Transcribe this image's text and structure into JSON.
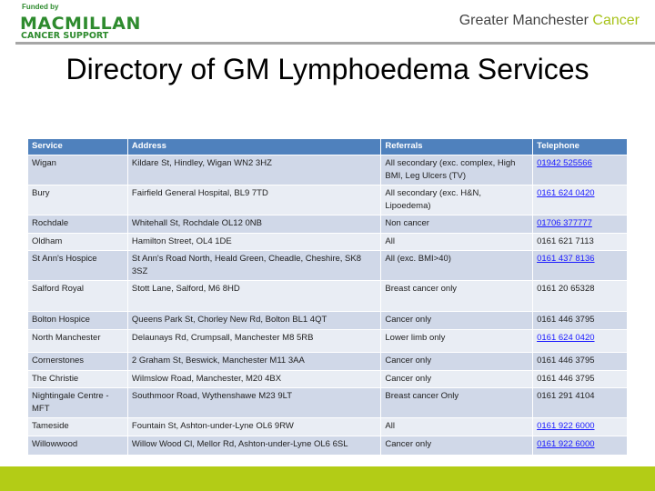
{
  "header": {
    "funded_by": "Funded by",
    "logo_line1": "MACMILLAN",
    "logo_line2": "CANCER SUPPORT",
    "brand_prefix": "Greater Manchester ",
    "brand_accent": "Cancer"
  },
  "title": "Directory of GM Lymphoedema Services",
  "colors": {
    "header_row": "#4f81bd",
    "row_dark": "#d0d8e8",
    "row_light": "#e9edf4",
    "brand_green": "#b3cc16",
    "logo_green": "#2e8b2e"
  },
  "table": {
    "columns": [
      "Service",
      "Address",
      "Referrals",
      "Telephone"
    ],
    "rows": [
      {
        "service": "Wigan",
        "address": "Kildare St, Hindley, Wigan WN2 3HZ",
        "referrals": "All secondary (exc. complex, High BMI, Leg Ulcers (TV)",
        "phone": "01942 525566",
        "link": true
      },
      {
        "service": "Bury",
        "address": "Fairfield General Hospital, BL9 7TD",
        "referrals": "All secondary  (exc. H&N, Lipoedema)",
        "phone": "0161 624 0420",
        "link": true
      },
      {
        "service": "Rochdale",
        "address": "Whitehall St, Rochdale OL12 0NB",
        "referrals": "Non cancer",
        "phone": "01706 377777",
        "link": true
      },
      {
        "service": "Oldham",
        "address": "Hamilton Street, OL4 1DE",
        "referrals": "All",
        "phone": "0161 621 7113",
        "link": false
      },
      {
        "service": "St Ann's Hospice",
        "address": "St Ann's Road North, Heald Green, Cheadle, Cheshire, SK8 3SZ",
        "referrals": "All (exc. BMI>40)",
        "phone": "0161 437 8136",
        "link": true
      },
      {
        "service": "Salford Royal",
        "address": "Stott Lane, Salford, M6 8HD",
        "referrals": "Breast cancer only",
        "phone": "0161 20 65328",
        "link": false
      },
      {
        "service": "Bolton Hospice",
        "address": "Queens Park St, Chorley New Rd, Bolton BL1 4QT",
        "referrals": "Cancer only",
        "phone": "0161 446 3795",
        "link": false
      },
      {
        "service": "North Manchester",
        "address": "Delaunays Rd, Crumpsall, Manchester M8 5RB",
        "referrals": "Lower limb only",
        "phone": "0161 624 0420",
        "link": true
      },
      {
        "service": "Cornerstones",
        "address": "2 Graham St, Beswick, Manchester M11 3AA",
        "referrals": "Cancer only",
        "phone": "0161 446 3795",
        "link": false
      },
      {
        "service": "The Christie",
        "address": "Wilmslow Road, Manchester, M20 4BX",
        "referrals": "Cancer only",
        "phone": "0161 446 3795",
        "link": false
      },
      {
        "service": "Nightingale Centre - MFT",
        "address": "Southmoor Road, Wythenshawe M23 9LT",
        "referrals": "Breast cancer Only",
        "phone": "0161 291 4104",
        "link": false
      },
      {
        "service": "Tameside",
        "address": "Fountain St, Ashton-under-Lyne OL6 9RW",
        "referrals": "All",
        "phone": "0161 922 6000",
        "link": true
      },
      {
        "service": "Willowwood",
        "address": "Willow Wood Cl, Mellor Rd, Ashton-under-Lyne OL6 6SL",
        "referrals": "Cancer only",
        "phone": "0161 922 6000",
        "link": true
      }
    ]
  }
}
